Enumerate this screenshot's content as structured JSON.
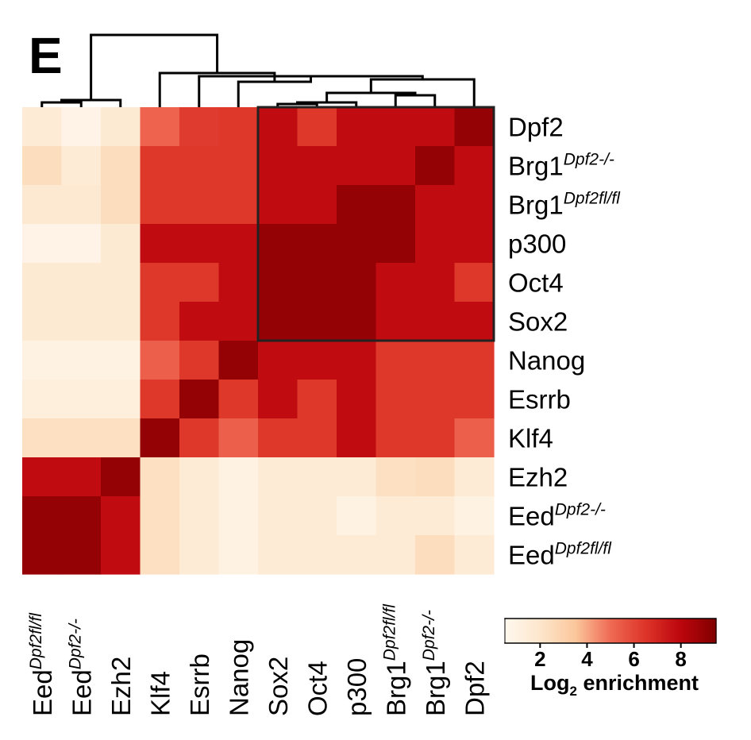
{
  "panel_label": "E",
  "chart_data": {
    "type": "heatmap",
    "title": "",
    "rows": [
      {
        "name": "Dpf2",
        "sup": ""
      },
      {
        "name": "Brg1",
        "sup": "Dpf2-/-"
      },
      {
        "name": "Brg1",
        "sup": "Dpf2fl/fl"
      },
      {
        "name": "p300",
        "sup": ""
      },
      {
        "name": "Oct4",
        "sup": ""
      },
      {
        "name": "Sox2",
        "sup": ""
      },
      {
        "name": "Nanog",
        "sup": ""
      },
      {
        "name": "Esrrb",
        "sup": ""
      },
      {
        "name": "Klf4",
        "sup": ""
      },
      {
        "name": "Ezh2",
        "sup": ""
      },
      {
        "name": "Eed",
        "sup": "Dpf2-/-"
      },
      {
        "name": "Eed",
        "sup": "Dpf2fl/fl"
      }
    ],
    "columns": [
      {
        "name": "Eed",
        "sup": "Dpf2fl/fl"
      },
      {
        "name": "Eed",
        "sup": "Dpf2-/-"
      },
      {
        "name": "Ezh2",
        "sup": ""
      },
      {
        "name": "Klf4",
        "sup": ""
      },
      {
        "name": "Esrrb",
        "sup": ""
      },
      {
        "name": "Nanog",
        "sup": ""
      },
      {
        "name": "Sox2",
        "sup": ""
      },
      {
        "name": "Oct4",
        "sup": ""
      },
      {
        "name": "p300",
        "sup": ""
      },
      {
        "name": "Brg1",
        "sup": "Dpf2fl/fl"
      },
      {
        "name": "Brg1",
        "sup": "Dpf2-/-"
      },
      {
        "name": "Dpf2",
        "sup": ""
      }
    ],
    "values": [
      [
        1.6,
        0.9,
        1.7,
        5.2,
        6.3,
        6.4,
        7.8,
        6.4,
        7.8,
        7.8,
        7.8,
        9.0
      ],
      [
        2.4,
        1.6,
        2.4,
        6.4,
        6.4,
        6.4,
        7.8,
        7.8,
        7.8,
        7.8,
        9.0,
        7.8
      ],
      [
        1.8,
        1.8,
        2.4,
        6.4,
        6.4,
        6.4,
        7.8,
        7.8,
        9.0,
        9.0,
        7.8,
        7.8
      ],
      [
        0.9,
        0.9,
        1.7,
        7.8,
        7.8,
        7.8,
        9.0,
        9.0,
        9.0,
        9.0,
        7.8,
        7.8
      ],
      [
        1.7,
        1.7,
        1.7,
        6.4,
        6.4,
        7.8,
        9.0,
        9.0,
        9.0,
        7.8,
        7.8,
        6.4
      ],
      [
        1.7,
        1.7,
        1.7,
        6.4,
        7.8,
        7.8,
        9.0,
        9.0,
        9.0,
        7.8,
        7.8,
        7.8
      ],
      [
        1.0,
        1.0,
        1.0,
        5.3,
        6.4,
        9.0,
        7.8,
        7.8,
        7.8,
        6.4,
        6.4,
        6.4
      ],
      [
        1.3,
        1.3,
        1.3,
        6.4,
        9.0,
        6.4,
        7.8,
        6.4,
        7.8,
        6.4,
        6.4,
        6.4
      ],
      [
        2.3,
        2.3,
        2.3,
        9.0,
        6.4,
        5.3,
        6.4,
        6.4,
        7.8,
        6.4,
        6.4,
        5.3
      ],
      [
        7.8,
        7.8,
        9.0,
        2.3,
        1.6,
        1.0,
        1.6,
        1.6,
        1.6,
        2.3,
        2.4,
        1.6
      ],
      [
        9.0,
        9.0,
        7.8,
        2.3,
        1.6,
        1.0,
        1.6,
        1.6,
        1.0,
        1.6,
        1.6,
        1.0
      ],
      [
        9.0,
        9.0,
        7.8,
        2.3,
        1.6,
        1.0,
        1.6,
        1.6,
        1.6,
        1.6,
        2.4,
        1.6
      ]
    ],
    "highlight_box": {
      "row_start": 0,
      "row_end": 5,
      "col_start": 6,
      "col_end": 11
    },
    "dendrogram": "columns (top)",
    "colorbar": {
      "label_main": "Log",
      "label_sub": "2",
      "label_rest": " enrichment",
      "ticks": [
        2,
        4,
        6,
        8
      ],
      "range": [
        0.5,
        9.5
      ],
      "colors": [
        "#fff8ef",
        "#fde6cc",
        "#fbc79c",
        "#ef6a54",
        "#dd3428",
        "#bc060e",
        "#800000"
      ]
    }
  }
}
